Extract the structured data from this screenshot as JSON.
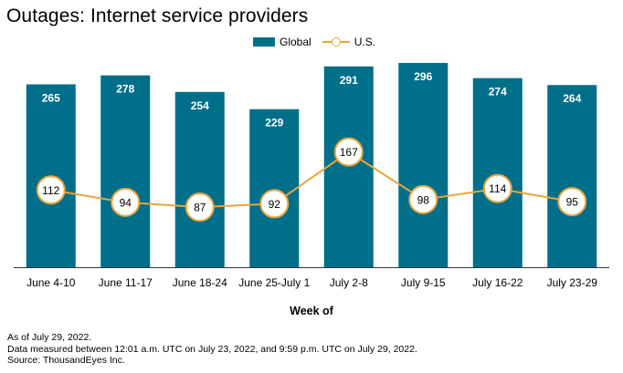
{
  "title": "Outages: Internet service providers",
  "legend": {
    "global": "Global",
    "us": "U.S."
  },
  "colors": {
    "bar": "#006f89",
    "line": "#e9a43f",
    "bar_label": "#ffffff",
    "marker_fill": "#ffffff",
    "axis": "#333333"
  },
  "xlabel": "Week of",
  "footnotes": [
    "As of July 29, 2022.",
    "Data measured between 12:01 a.m. UTC on July 23, 2022, and 9:59 p.m. UTC on July 29, 2022.",
    "Source: ThousandEyes Inc."
  ],
  "chart_data": {
    "type": "bar",
    "title": "Outages: Internet service providers",
    "xlabel": "Week of",
    "ylabel": "",
    "ylim": [
      0,
      300
    ],
    "grid": false,
    "legend_position": "top-center",
    "categories": [
      "June 4-10",
      "June 11-17",
      "June 18-24",
      "June 25-July 1",
      "July 2-8",
      "July 9-15",
      "July 16-22",
      "July 23-29"
    ],
    "series": [
      {
        "name": "Global",
        "type": "bar",
        "values": [
          265,
          278,
          254,
          229,
          291,
          296,
          274,
          264
        ]
      },
      {
        "name": "U.S.",
        "type": "line",
        "values": [
          112,
          94,
          87,
          92,
          167,
          98,
          114,
          95
        ]
      }
    ]
  }
}
